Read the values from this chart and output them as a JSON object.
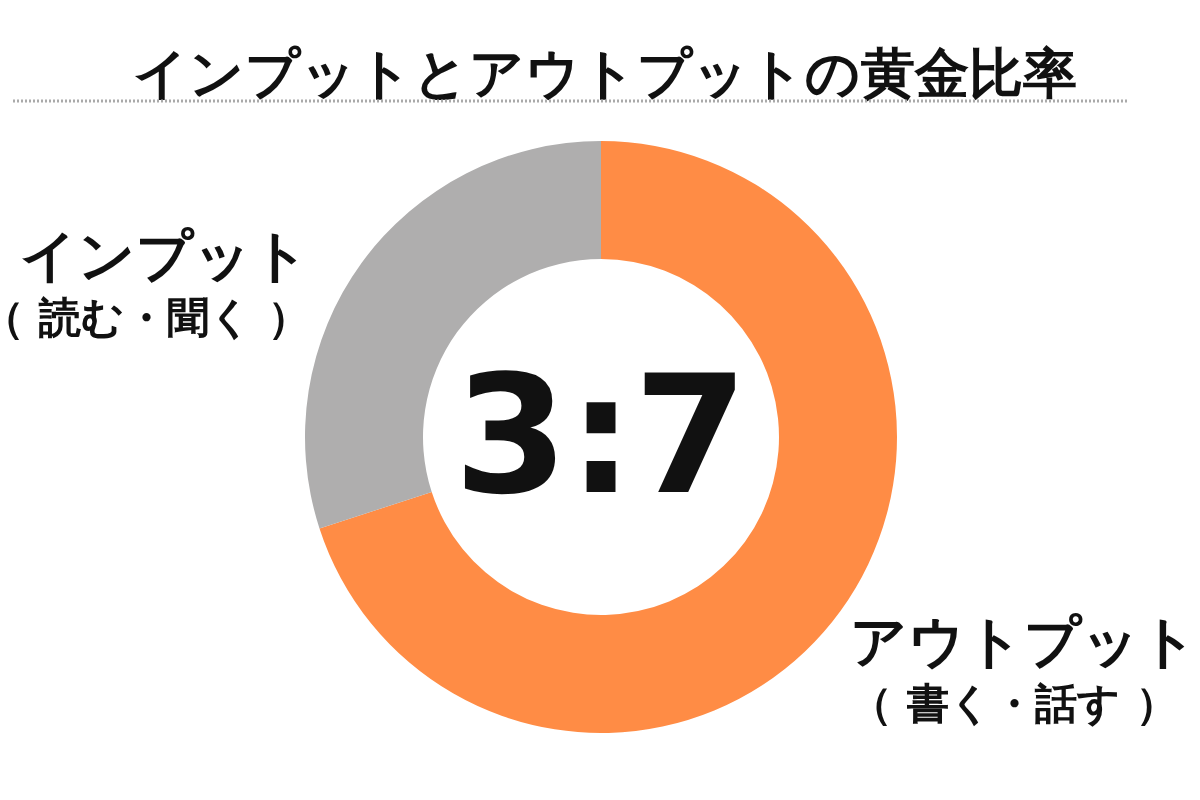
{
  "chart_data": {
    "type": "donut",
    "title": "インプットとアウトプットの黄金比率",
    "categories": [
      "アウトプット（ 書く・話す ）",
      "インプット（ 読む・聞く ）"
    ],
    "values": [
      70,
      30
    ],
    "colors": [
      "#ff8c45",
      "#afaeae"
    ],
    "annotations": [
      "3:7"
    ]
  }
}
